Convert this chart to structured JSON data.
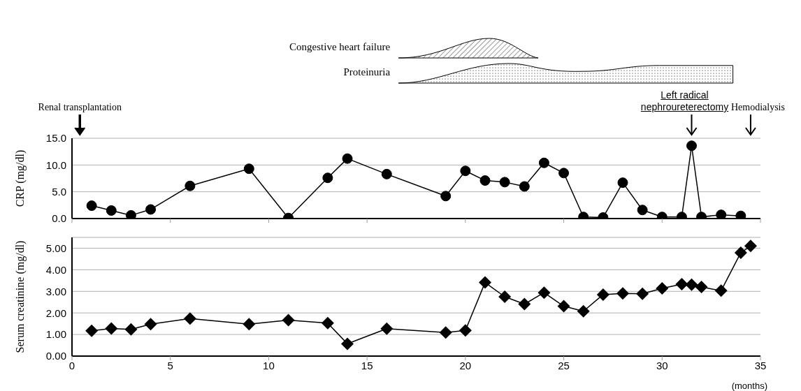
{
  "chart_data": [
    {
      "type": "line",
      "ylabel": "CRP (mg/dl)",
      "xlim": [
        0,
        35
      ],
      "xticks": [
        {
          "value": 0,
          "label": null
        },
        {
          "value": 5,
          "label": null
        },
        {
          "value": 10,
          "label": null
        },
        {
          "value": 15,
          "label": null
        },
        {
          "value": 20,
          "label": null
        },
        {
          "value": 25,
          "label": null
        },
        {
          "value": 30,
          "label": null
        },
        {
          "value": 35,
          "label": null
        }
      ],
      "ylim": [
        0,
        15
      ],
      "yticks": [
        {
          "value": 0,
          "label": "0.0"
        },
        {
          "value": 5,
          "label": "5.0"
        },
        {
          "value": 10,
          "label": "10.0"
        },
        {
          "value": 15,
          "label": "15.0"
        }
      ],
      "grid": "y",
      "tick_labels": "y",
      "marker": "circle",
      "x": [
        1,
        2,
        3,
        4,
        6,
        9,
        11,
        13,
        14,
        16,
        19,
        20,
        21,
        22,
        23,
        24,
        25,
        26,
        27,
        28,
        29,
        30,
        31,
        31.5,
        32,
        33,
        34
      ],
      "series": [
        {
          "color": "#000000",
          "values": [
            2.4,
            1.5,
            0.6,
            1.7,
            6.1,
            9.3,
            0.1,
            7.6,
            11.2,
            8.3,
            4.2,
            8.9,
            7.1,
            6.8,
            6.0,
            10.4,
            8.5,
            0.3,
            0.2,
            6.7,
            1.6,
            0.3,
            0.3,
            13.6,
            0.3,
            0.7,
            0.5
          ]
        }
      ],
      "annotations": [
        "Congestive heart failure",
        "Proteinuria",
        "Renal transplantation",
        "Left radical nephroureterectomy",
        "Hemodialysis"
      ]
    },
    {
      "type": "line",
      "ylabel": "Serum creatinine (mg/dl)",
      "xlabel": "(months)",
      "xlim": [
        0,
        35
      ],
      "xticks": [
        0,
        5,
        10,
        15,
        20,
        25,
        30,
        35
      ],
      "ylim": [
        0,
        5.5
      ],
      "yticks": [
        {
          "value": 0,
          "label": "0.00"
        },
        {
          "value": 1,
          "label": "1.00"
        },
        {
          "value": 2,
          "label": "2.00"
        },
        {
          "value": 3,
          "label": "3.00"
        },
        {
          "value": 4,
          "label": "4.00"
        },
        {
          "value": 5,
          "label": "5.00"
        }
      ],
      "grid": "y",
      "marker": "diamond",
      "x": [
        1,
        2,
        3,
        4,
        6,
        9,
        11,
        13,
        14,
        16,
        19,
        20,
        21,
        22,
        23,
        24,
        25,
        26,
        27,
        28,
        29,
        30,
        31,
        31.5,
        32,
        33,
        34,
        34.5
      ],
      "series": [
        {
          "color": "#000000",
          "values": [
            1.17,
            1.28,
            1.24,
            1.48,
            1.74,
            1.48,
            1.67,
            1.53,
            0.57,
            1.27,
            1.09,
            1.19,
            3.41,
            2.75,
            2.41,
            2.94,
            2.31,
            2.08,
            2.85,
            2.9,
            2.89,
            3.14,
            3.33,
            3.31,
            3.2,
            3.03,
            4.79,
            5.1
          ]
        }
      ]
    }
  ]
}
